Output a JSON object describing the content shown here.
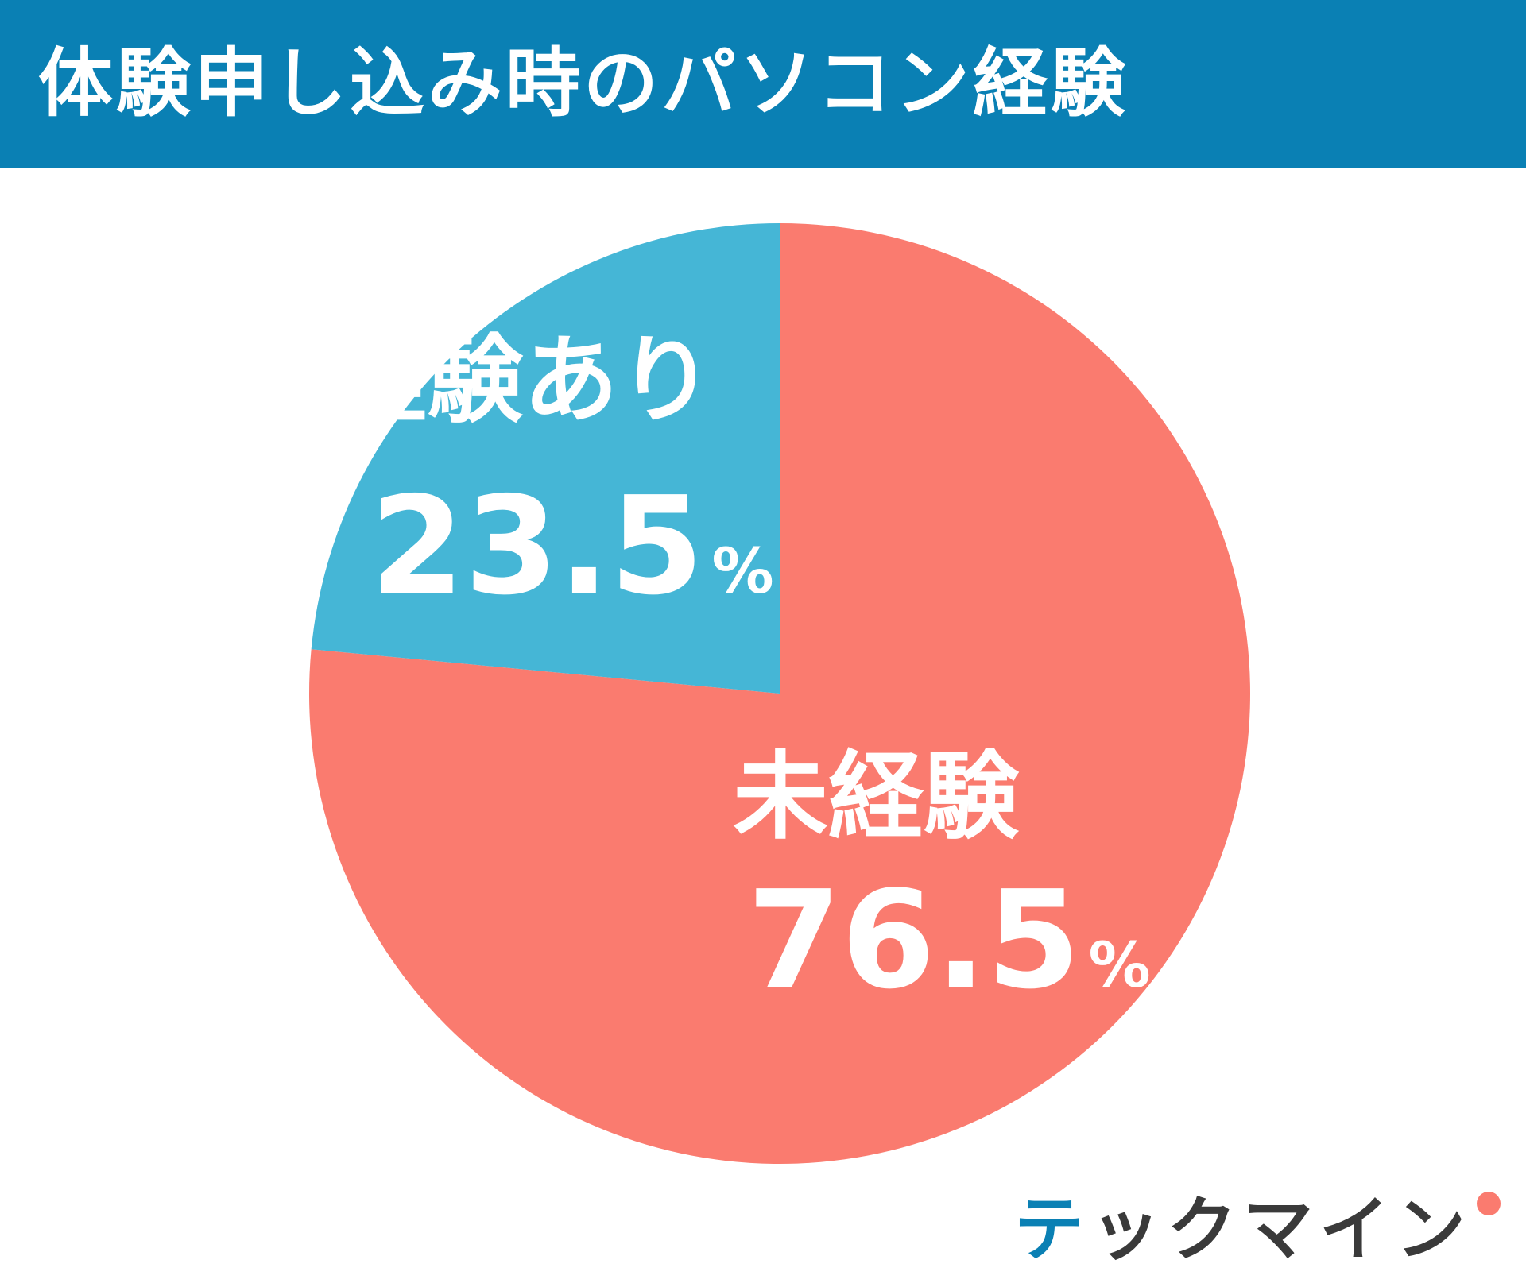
{
  "chart_data": {
    "type": "pie",
    "title": "体験申し込み時のパソコン経験",
    "slices": [
      {
        "label": "経験あり",
        "value": 23.5,
        "value_text": "23.5",
        "unit": "%",
        "color": "#45b6d6"
      },
      {
        "label": "未経験",
        "value": 76.5,
        "value_text": "76.5",
        "unit": "%",
        "color": "#fa7b6f"
      }
    ],
    "start": "12 o'clock",
    "direction": "counter-clockwise for 経験あり"
  },
  "header": {
    "background_color": "#0a80b4"
  },
  "logo": {
    "accent_part": "テ",
    "rest_part": "ックマイン",
    "accent_color": "#0a80b4",
    "dot_color": "#fa7b6f"
  }
}
